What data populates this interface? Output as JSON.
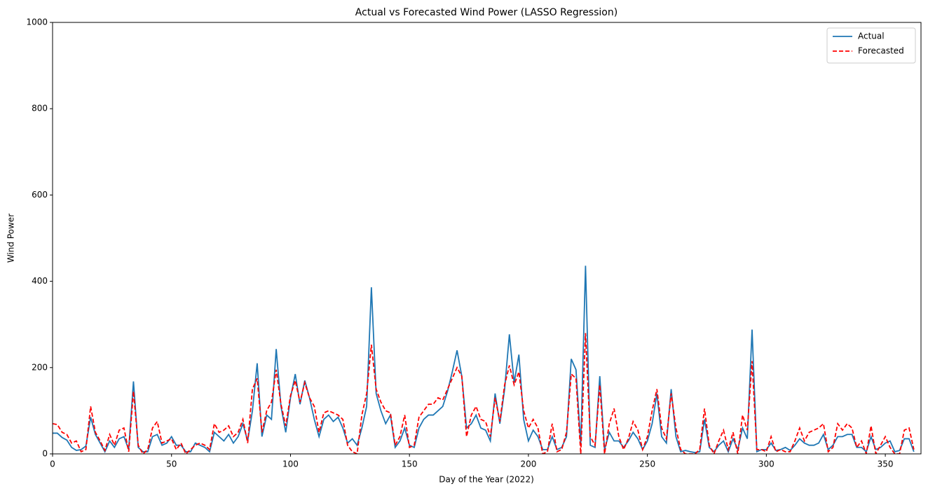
{
  "chart_data": {
    "type": "line",
    "title": "Actual vs Forecasted Wind Power (LASSO Regression)",
    "x_label": "Day of the Year (2022)",
    "y_label": "Wind Power",
    "x": [
      0,
      2,
      4,
      6,
      8,
      10,
      12,
      14,
      16,
      18,
      20,
      22,
      24,
      26,
      28,
      30,
      32,
      34,
      36,
      38,
      40,
      42,
      44,
      46,
      48,
      50,
      52,
      54,
      56,
      58,
      60,
      62,
      64,
      66,
      68,
      70,
      72,
      74,
      76,
      78,
      80,
      82,
      84,
      86,
      88,
      90,
      92,
      94,
      96,
      98,
      100,
      102,
      104,
      106,
      108,
      110,
      112,
      114,
      116,
      118,
      120,
      122,
      124,
      126,
      128,
      130,
      132,
      134,
      136,
      138,
      140,
      142,
      144,
      146,
      148,
      150,
      152,
      154,
      156,
      158,
      160,
      162,
      164,
      166,
      168,
      170,
      172,
      174,
      176,
      178,
      180,
      182,
      184,
      186,
      188,
      190,
      192,
      194,
      196,
      198,
      200,
      202,
      204,
      206,
      208,
      210,
      212,
      214,
      216,
      218,
      220,
      222,
      224,
      226,
      228,
      230,
      232,
      234,
      236,
      238,
      240,
      242,
      244,
      246,
      248,
      250,
      252,
      254,
      256,
      258,
      260,
      262,
      264,
      266,
      268,
      270,
      272,
      274,
      276,
      278,
      280,
      282,
      284,
      286,
      288,
      290,
      292,
      294,
      296,
      298,
      300,
      302,
      304,
      306,
      308,
      310,
      312,
      314,
      316,
      318,
      320,
      322,
      324,
      326,
      328,
      330,
      332,
      334,
      336,
      338,
      340,
      342,
      344,
      346,
      348,
      350,
      352,
      354,
      356,
      358,
      360,
      362
    ],
    "series": [
      {
        "name": "Actual",
        "color": "#1f77b4",
        "dash": "solid",
        "values": [
          48,
          48,
          38,
          32,
          15,
          8,
          10,
          18,
          85,
          45,
          25,
          5,
          30,
          15,
          35,
          40,
          10,
          168,
          15,
          5,
          5,
          40,
          45,
          20,
          25,
          40,
          20,
          20,
          5,
          5,
          25,
          20,
          15,
          5,
          50,
          40,
          30,
          45,
          25,
          40,
          70,
          30,
          100,
          210,
          40,
          90,
          80,
          243,
          110,
          50,
          130,
          185,
          115,
          170,
          130,
          80,
          40,
          80,
          90,
          75,
          85,
          60,
          25,
          35,
          20,
          60,
          110,
          386,
          140,
          100,
          70,
          90,
          15,
          30,
          60,
          20,
          15,
          60,
          80,
          90,
          90,
          100,
          110,
          145,
          190,
          240,
          180,
          60,
          70,
          90,
          60,
          55,
          30,
          140,
          70,
          150,
          277,
          165,
          230,
          80,
          30,
          55,
          40,
          10,
          10,
          40,
          10,
          15,
          40,
          220,
          195,
          20,
          436,
          20,
          15,
          180,
          10,
          50,
          30,
          30,
          15,
          30,
          50,
          35,
          10,
          30,
          70,
          140,
          40,
          25,
          150,
          40,
          5,
          8,
          5,
          3,
          5,
          80,
          15,
          5,
          20,
          30,
          5,
          35,
          10,
          60,
          35,
          288,
          5,
          10,
          10,
          25,
          8,
          10,
          15,
          8,
          20,
          35,
          25,
          20,
          20,
          25,
          45,
          10,
          20,
          40,
          40,
          45,
          45,
          15,
          15,
          5,
          40,
          10,
          15,
          25,
          30,
          5,
          8,
          35,
          35,
          5
        ]
      },
      {
        "name": "Forecasted",
        "color": "#ff0000",
        "dash": "dashed",
        "values": [
          70,
          68,
          50,
          45,
          25,
          30,
          5,
          10,
          110,
          50,
          30,
          8,
          45,
          20,
          55,
          60,
          5,
          145,
          20,
          0,
          10,
          60,
          75,
          25,
          30,
          35,
          10,
          25,
          0,
          10,
          20,
          25,
          20,
          10,
          70,
          50,
          55,
          65,
          40,
          50,
          80,
          25,
          150,
          175,
          50,
          100,
          120,
          195,
          115,
          65,
          135,
          170,
          120,
          165,
          130,
          110,
          50,
          95,
          100,
          95,
          90,
          80,
          20,
          5,
          0,
          90,
          140,
          253,
          150,
          120,
          100,
          95,
          20,
          40,
          90,
          15,
          20,
          85,
          100,
          115,
          115,
          130,
          125,
          150,
          175,
          200,
          180,
          40,
          90,
          110,
          80,
          75,
          40,
          130,
          75,
          160,
          205,
          160,
          190,
          100,
          60,
          80,
          60,
          0,
          5,
          70,
          5,
          10,
          50,
          185,
          175,
          0,
          280,
          40,
          20,
          160,
          0,
          70,
          105,
          40,
          10,
          35,
          75,
          55,
          10,
          40,
          100,
          150,
          60,
          35,
          140,
          60,
          10,
          0,
          0,
          0,
          10,
          105,
          20,
          0,
          30,
          55,
          10,
          50,
          0,
          90,
          55,
          215,
          10,
          10,
          5,
          40,
          5,
          10,
          5,
          5,
          30,
          60,
          30,
          50,
          55,
          60,
          70,
          5,
          15,
          70,
          55,
          70,
          60,
          15,
          30,
          0,
          65,
          0,
          20,
          40,
          15,
          0,
          0,
          55,
          60,
          10
        ]
      }
    ],
    "xlim": [
      0,
      365
    ],
    "ylim": [
      0,
      1000
    ],
    "xticks": [
      0,
      50,
      100,
      150,
      200,
      250,
      300,
      350
    ],
    "yticks": [
      0,
      200,
      400,
      600,
      800,
      1000
    ],
    "grid": false,
    "legend": "upper right"
  }
}
